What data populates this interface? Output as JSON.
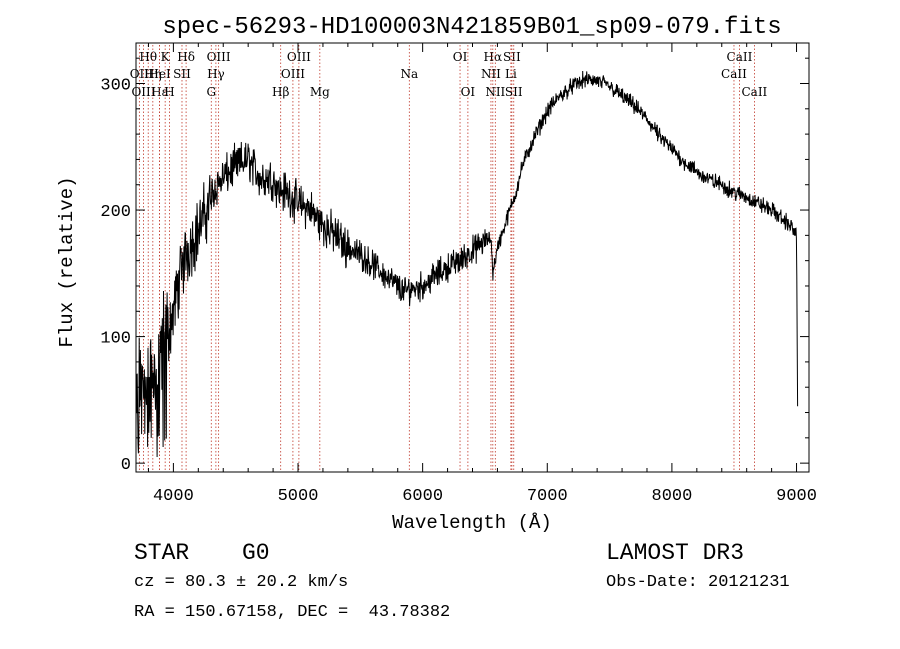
{
  "chart_data": {
    "type": "line",
    "title": "spec-56293-HD100003N421859B01_sp09-079.fits",
    "xlabel": "Wavelength (Å)",
    "ylabel": "Flux (relative)",
    "xlim": [
      3700,
      9100
    ],
    "ylim": [
      -7,
      332
    ],
    "x_ticks": [
      4000,
      5000,
      6000,
      7000,
      8000,
      9000
    ],
    "x_tick_labels": [
      "4000",
      "5000",
      "6000",
      "7000",
      "8000",
      "9000"
    ],
    "y_ticks": [
      0,
      100,
      200,
      300
    ],
    "y_tick_labels": [
      "0",
      "100",
      "200",
      "300"
    ],
    "grid": false,
    "series": [
      {
        "name": "flux",
        "x": [
          3700,
          3750,
          3800,
          3850,
          3900,
          3950,
          4000,
          4050,
          4100,
          4150,
          4200,
          4250,
          4300,
          4350,
          4400,
          4450,
          4500,
          4600,
          4700,
          4800,
          4850,
          4900,
          5000,
          5100,
          5200,
          5300,
          5400,
          5500,
          5600,
          5700,
          5800,
          5850,
          5900,
          6000,
          6100,
          6200,
          6300,
          6400,
          6500,
          6550,
          6563,
          6600,
          6650,
          6700,
          6750,
          6800,
          6900,
          7000,
          7100,
          7200,
          7300,
          7400,
          7500,
          7600,
          7700,
          7800,
          7900,
          8000,
          8100,
          8200,
          8300,
          8400,
          8500,
          8600,
          8700,
          8800,
          8900,
          8950,
          9000,
          9010
        ],
        "y": [
          30,
          80,
          60,
          75,
          95,
          100,
          120,
          145,
          165,
          175,
          185,
          195,
          210,
          220,
          225,
          230,
          235,
          240,
          225,
          225,
          215,
          215,
          205,
          200,
          188,
          180,
          170,
          165,
          157,
          148,
          140,
          135,
          138,
          140,
          148,
          155,
          160,
          168,
          175,
          178,
          150,
          170,
          185,
          200,
          215,
          235,
          258,
          278,
          290,
          298,
          303,
          302,
          298,
          290,
          282,
          272,
          258,
          248,
          238,
          230,
          224,
          220,
          214,
          210,
          205,
          200,
          192,
          188,
          180,
          25
        ]
      }
    ],
    "spectral_lines": [
      {
        "label": "Hθ",
        "x": 3798,
        "row": 1
      },
      {
        "label": "OII",
        "x": 3727,
        "row": 2
      },
      {
        "label": "OIII",
        "x": 3760,
        "row": 3
      },
      {
        "label": "Hη",
        "x": 3835,
        "row": 2
      },
      {
        "label": "Hε",
        "x": 3889,
        "row": 3
      },
      {
        "label": "HeI",
        "x": 3889,
        "row": 2
      },
      {
        "label": "K",
        "x": 3934,
        "row": 1
      },
      {
        "label": "H",
        "x": 3969,
        "row": 3
      },
      {
        "label": "SII",
        "x": 4069,
        "row": 2
      },
      {
        "label": "Hδ",
        "x": 4102,
        "row": 1
      },
      {
        "label": "OIII",
        "x": 4363,
        "row": 1
      },
      {
        "label": "Hγ",
        "x": 4341,
        "row": 2
      },
      {
        "label": "G",
        "x": 4304,
        "row": 3
      },
      {
        "label": "Hβ",
        "x": 4861,
        "row": 3
      },
      {
        "label": "OIII",
        "x": 5007,
        "row": 1
      },
      {
        "label": "OIII",
        "x": 4959,
        "row": 2
      },
      {
        "label": "Mg",
        "x": 5175,
        "row": 3
      },
      {
        "label": "Na",
        "x": 5893,
        "row": 2
      },
      {
        "label": "OI",
        "x": 6300,
        "row": 1
      },
      {
        "label": "OI",
        "x": 6363,
        "row": 3
      },
      {
        "label": "Hα",
        "x": 6563,
        "row": 1
      },
      {
        "label": "NII",
        "x": 6548,
        "row": 2
      },
      {
        "label": "NII",
        "x": 6583,
        "row": 3
      },
      {
        "label": "SII",
        "x": 6716,
        "row": 1
      },
      {
        "label": "Li",
        "x": 6708,
        "row": 2
      },
      {
        "label": "SII",
        "x": 6731,
        "row": 3
      },
      {
        "label": "CaII",
        "x": 8542,
        "row": 1
      },
      {
        "label": "CaII",
        "x": 8498,
        "row": 2
      },
      {
        "label": "CaII",
        "x": 8662,
        "row": 3
      }
    ]
  },
  "info": {
    "object_class": "STAR",
    "subclass": "G0",
    "survey": "LAMOST DR3",
    "redshift": "cz = 80.3 ± 20.2 km/s",
    "obs_date": "Obs-Date: 20121231",
    "coords": "RA = 150.67158, DEC =  43.78382"
  }
}
